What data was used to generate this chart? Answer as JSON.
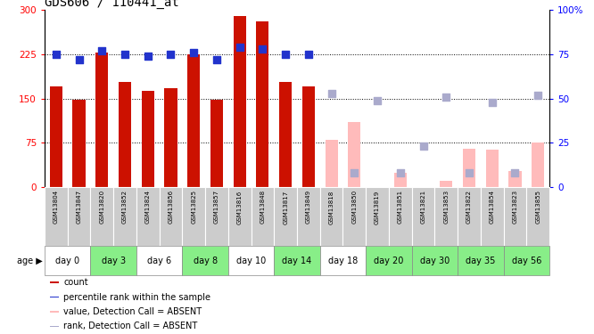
{
  "title": "GDS606 / 110441_at",
  "samples": [
    "GSM13804",
    "GSM13847",
    "GSM13820",
    "GSM13852",
    "GSM13824",
    "GSM13856",
    "GSM13825",
    "GSM13857",
    "GSM13816",
    "GSM13848",
    "GSM13817",
    "GSM13849",
    "GSM13818",
    "GSM13850",
    "GSM13819",
    "GSM13851",
    "GSM13821",
    "GSM13853",
    "GSM13822",
    "GSM13854",
    "GSM13823",
    "GSM13855"
  ],
  "day_groups": [
    {
      "day": "day 0",
      "indices": [
        0,
        1
      ],
      "bg": "#ffffff"
    },
    {
      "day": "day 3",
      "indices": [
        2,
        3
      ],
      "bg": "#88ee88"
    },
    {
      "day": "day 6",
      "indices": [
        4,
        5
      ],
      "bg": "#ffffff"
    },
    {
      "day": "day 8",
      "indices": [
        6,
        7
      ],
      "bg": "#88ee88"
    },
    {
      "day": "day 10",
      "indices": [
        8,
        9
      ],
      "bg": "#ffffff"
    },
    {
      "day": "day 14",
      "indices": [
        10,
        11
      ],
      "bg": "#88ee88"
    },
    {
      "day": "day 18",
      "indices": [
        12,
        13
      ],
      "bg": "#ffffff"
    },
    {
      "day": "day 20",
      "indices": [
        14,
        15
      ],
      "bg": "#88ee88"
    },
    {
      "day": "day 30",
      "indices": [
        16,
        17
      ],
      "bg": "#88ee88"
    },
    {
      "day": "day 35",
      "indices": [
        18,
        19
      ],
      "bg": "#88ee88"
    },
    {
      "day": "day 56",
      "indices": [
        20,
        21
      ],
      "bg": "#88ee88"
    }
  ],
  "count_present": [
    170,
    148,
    228,
    178,
    163,
    168,
    225,
    148,
    290,
    280,
    178,
    170,
    null,
    null,
    null,
    null,
    null,
    null,
    null,
    null,
    null,
    null
  ],
  "count_absent": [
    null,
    null,
    null,
    null,
    null,
    null,
    null,
    null,
    null,
    null,
    null,
    null,
    80,
    110,
    null,
    24,
    null,
    10,
    65,
    63,
    27,
    75
  ],
  "rank_present": [
    75,
    72,
    77,
    75,
    74,
    75,
    76,
    72,
    79,
    78,
    75,
    75,
    null,
    null,
    null,
    null,
    null,
    null,
    null,
    null,
    null,
    null
  ],
  "rank_absent": [
    null,
    null,
    null,
    null,
    null,
    null,
    null,
    null,
    null,
    null,
    null,
    null,
    53,
    8,
    49,
    8,
    23,
    51,
    8,
    48,
    8,
    52
  ],
  "ylim_left": [
    0,
    300
  ],
  "ylim_right": [
    0,
    100
  ],
  "yticks_left": [
    0,
    75,
    150,
    225,
    300
  ],
  "yticks_right": [
    0,
    25,
    50,
    75,
    100
  ],
  "color_bar_present": "#cc1100",
  "color_bar_absent": "#ffbbbb",
  "color_rank_present": "#2233cc",
  "color_rank_absent": "#aaaacc",
  "bar_width": 0.55,
  "rank_marker_size": 28,
  "sample_bg_color": "#cccccc"
}
